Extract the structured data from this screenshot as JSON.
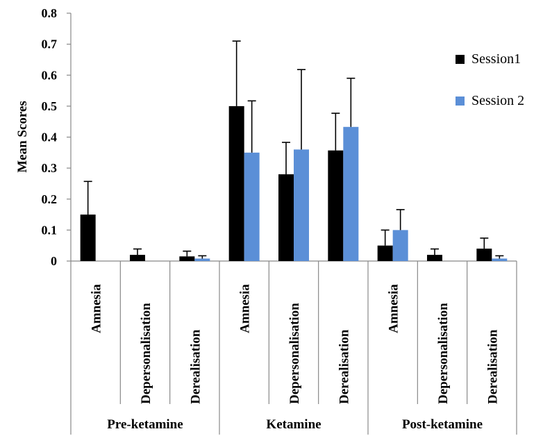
{
  "chart_data": {
    "type": "bar",
    "ylabel": "Mean Scores",
    "ylim": [
      0,
      0.8
    ],
    "yticks": [
      "0",
      "0.1",
      "0.2",
      "0.3",
      "0.4",
      "0.5",
      "0.6",
      "0.7",
      "0.8"
    ],
    "groups": [
      {
        "label": "Pre-ketamine",
        "categories": [
          "Amnesia",
          "Depersonalisation",
          "Derealisation"
        ]
      },
      {
        "label": "Ketamine",
        "categories": [
          "Amnesia",
          "Depersonalisation",
          "Derealisation"
        ]
      },
      {
        "label": "Post-ketamine",
        "categories": [
          "Amnesia",
          "Depersonalisation",
          "Derealisation"
        ]
      }
    ],
    "series": [
      {
        "name": "Session1",
        "color": "#000000",
        "values": [
          0.15,
          0.02,
          0.015,
          0.5,
          0.28,
          0.357,
          0.05,
          0.02,
          0.04
        ],
        "errors": [
          0.107,
          0.019,
          0.017,
          0.21,
          0.103,
          0.12,
          0.05,
          0.019,
          0.034
        ]
      },
      {
        "name": "Session 2",
        "color": "#5b8fd7",
        "values": [
          0,
          0,
          0.008,
          0.35,
          0.36,
          0.433,
          0.1,
          0,
          0.008
        ],
        "errors": [
          0,
          0,
          0.009,
          0.167,
          0.258,
          0.157,
          0.066,
          0,
          0.009
        ]
      }
    ],
    "legend_position": "right",
    "grid": false
  }
}
